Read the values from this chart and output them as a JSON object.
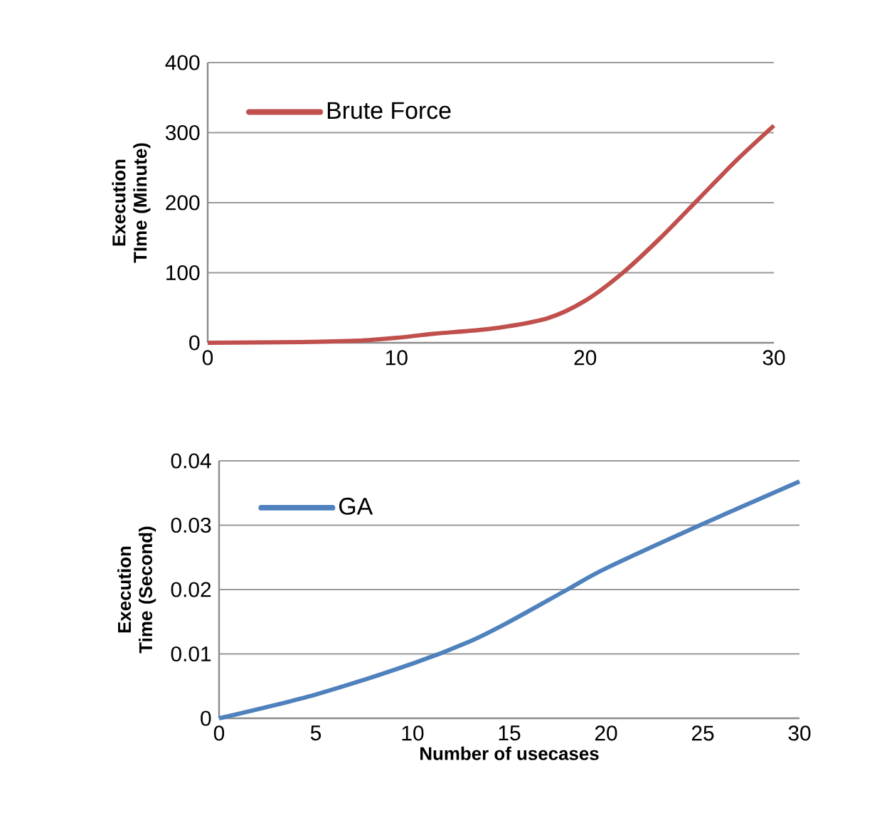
{
  "chart_data": [
    {
      "type": "line",
      "ylabel": "Execution TIme (Minute)",
      "xlim": [
        0,
        30
      ],
      "ylim": [
        0,
        400
      ],
      "xticks": [
        0,
        10,
        20,
        30
      ],
      "yticks": [
        0,
        100,
        200,
        300,
        400
      ],
      "grid": "y",
      "legend": "top left",
      "x": [
        0,
        5,
        8,
        10,
        12,
        15,
        18,
        20,
        22,
        24,
        26,
        28,
        30
      ],
      "series": [
        {
          "name": "Brute Force",
          "color": "#c0504d",
          "values": [
            0,
            1,
            3,
            7,
            13,
            20,
            35,
            60,
            100,
            150,
            205,
            260,
            310
          ]
        }
      ]
    },
    {
      "type": "line",
      "ylabel": "Execution Time (Second)",
      "xlabel": "Number of usecases",
      "xlim": [
        0,
        30
      ],
      "ylim": [
        0,
        0.04
      ],
      "xticks": [
        0,
        5,
        10,
        15,
        20,
        25,
        30
      ],
      "yticks": [
        0,
        0.01,
        0.02,
        0.03,
        0.04
      ],
      "grid": "y",
      "legend": "top left",
      "x": [
        0,
        5,
        10,
        13,
        15,
        18,
        20,
        25,
        30
      ],
      "series": [
        {
          "name": "GA",
          "color": "#4f81bd",
          "values": [
            0,
            0.0037,
            0.0085,
            0.012,
            0.015,
            0.02,
            0.0233,
            0.0302,
            0.0368
          ]
        }
      ]
    }
  ]
}
